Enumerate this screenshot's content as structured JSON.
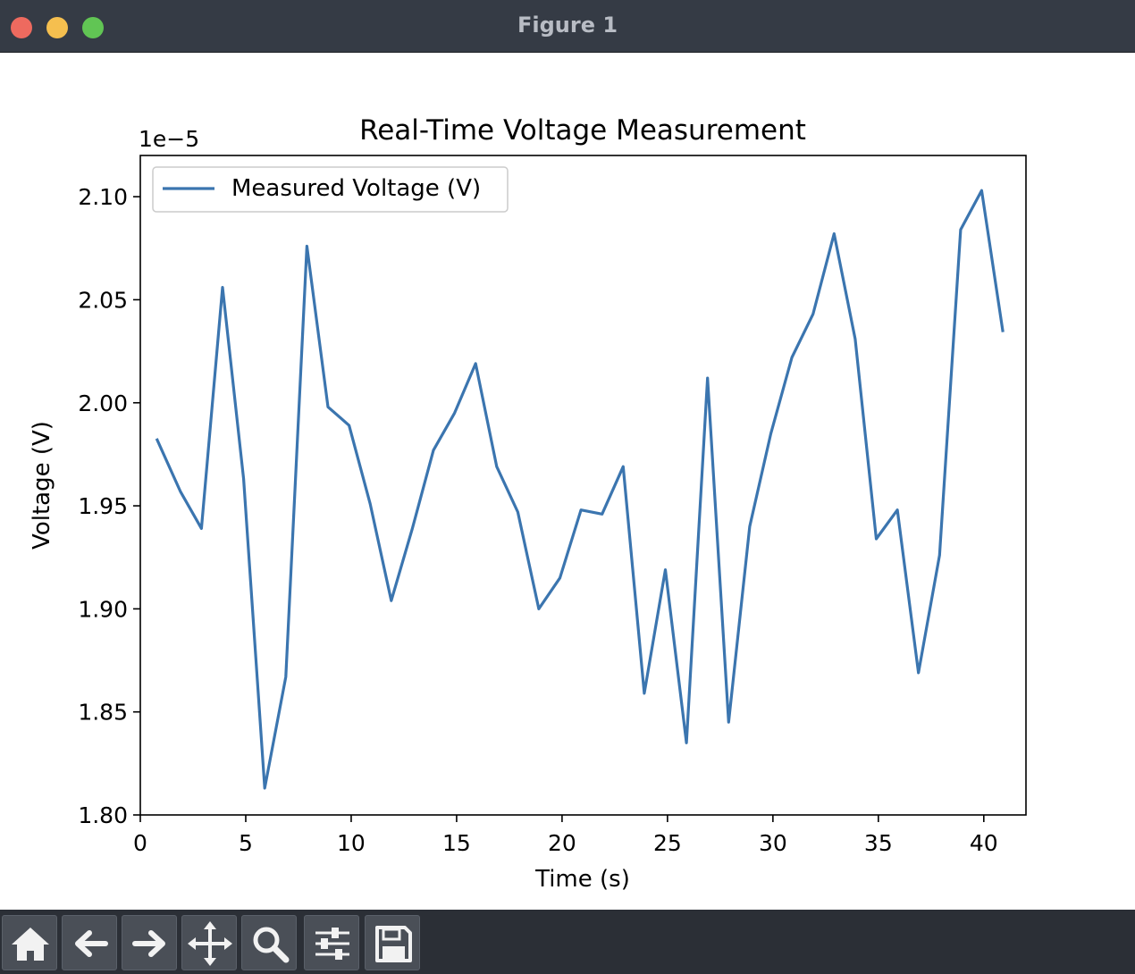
{
  "window": {
    "title": "Figure 1"
  },
  "toolbar": {
    "buttons": [
      {
        "name": "home-button",
        "icon": "home-icon"
      },
      {
        "name": "back-button",
        "icon": "arrow-left-icon"
      },
      {
        "name": "forward-button",
        "icon": "arrow-right-icon"
      },
      {
        "name": "pan-button",
        "icon": "move-icon"
      },
      {
        "name": "zoom-button",
        "icon": "magnifier-icon"
      },
      {
        "name": "configure-subplots-button",
        "icon": "sliders-icon"
      },
      {
        "name": "save-button",
        "icon": "floppy-disk-icon"
      }
    ]
  },
  "chart_data": {
    "type": "line",
    "title": "Real-Time Voltage Measurement",
    "xlabel": "Time (s)",
    "ylabel": "Voltage (V)",
    "y_offset_label": "1e−5",
    "y_scale_factor": 1e-05,
    "xlim": [
      0,
      42
    ],
    "ylim": [
      1.8,
      2.12
    ],
    "xticks": [
      0,
      5,
      10,
      15,
      20,
      25,
      30,
      35,
      40
    ],
    "xtick_labels": [
      "0",
      "5",
      "10",
      "15",
      "20",
      "25",
      "30",
      "35",
      "40"
    ],
    "yticks": [
      1.8,
      1.85,
      1.9,
      1.95,
      2.0,
      2.05,
      2.1
    ],
    "ytick_labels": [
      "1.80",
      "1.85",
      "1.90",
      "1.95",
      "2.00",
      "2.05",
      "2.10"
    ],
    "grid": false,
    "legend_position": "top-left",
    "series": [
      {
        "name": "Measured Voltage (V)",
        "color": "#3b75af",
        "x": [
          0.8,
          1.9,
          2.9,
          3.9,
          4.9,
          5.9,
          6.9,
          7.9,
          8.9,
          9.9,
          10.9,
          11.9,
          12.9,
          13.9,
          14.9,
          15.9,
          16.9,
          17.9,
          18.9,
          19.9,
          20.9,
          21.9,
          22.9,
          23.9,
          24.9,
          25.9,
          26.9,
          27.9,
          28.9,
          29.9,
          30.9,
          31.9,
          32.9,
          33.9,
          34.9,
          35.9,
          36.9,
          37.9,
          38.9,
          39.9,
          40.9
        ],
        "y": [
          1.982,
          1.957,
          1.939,
          2.056,
          1.963,
          1.813,
          1.867,
          2.076,
          1.998,
          1.989,
          1.951,
          1.904,
          1.939,
          1.977,
          1.995,
          2.019,
          1.969,
          1.947,
          1.9,
          1.915,
          1.948,
          1.946,
          1.969,
          1.859,
          1.919,
          1.835,
          2.012,
          1.845,
          1.94,
          1.985,
          2.022,
          2.043,
          2.082,
          2.031,
          1.934,
          1.948,
          1.869,
          1.926,
          2.084,
          2.103,
          2.035
        ]
      }
    ]
  }
}
